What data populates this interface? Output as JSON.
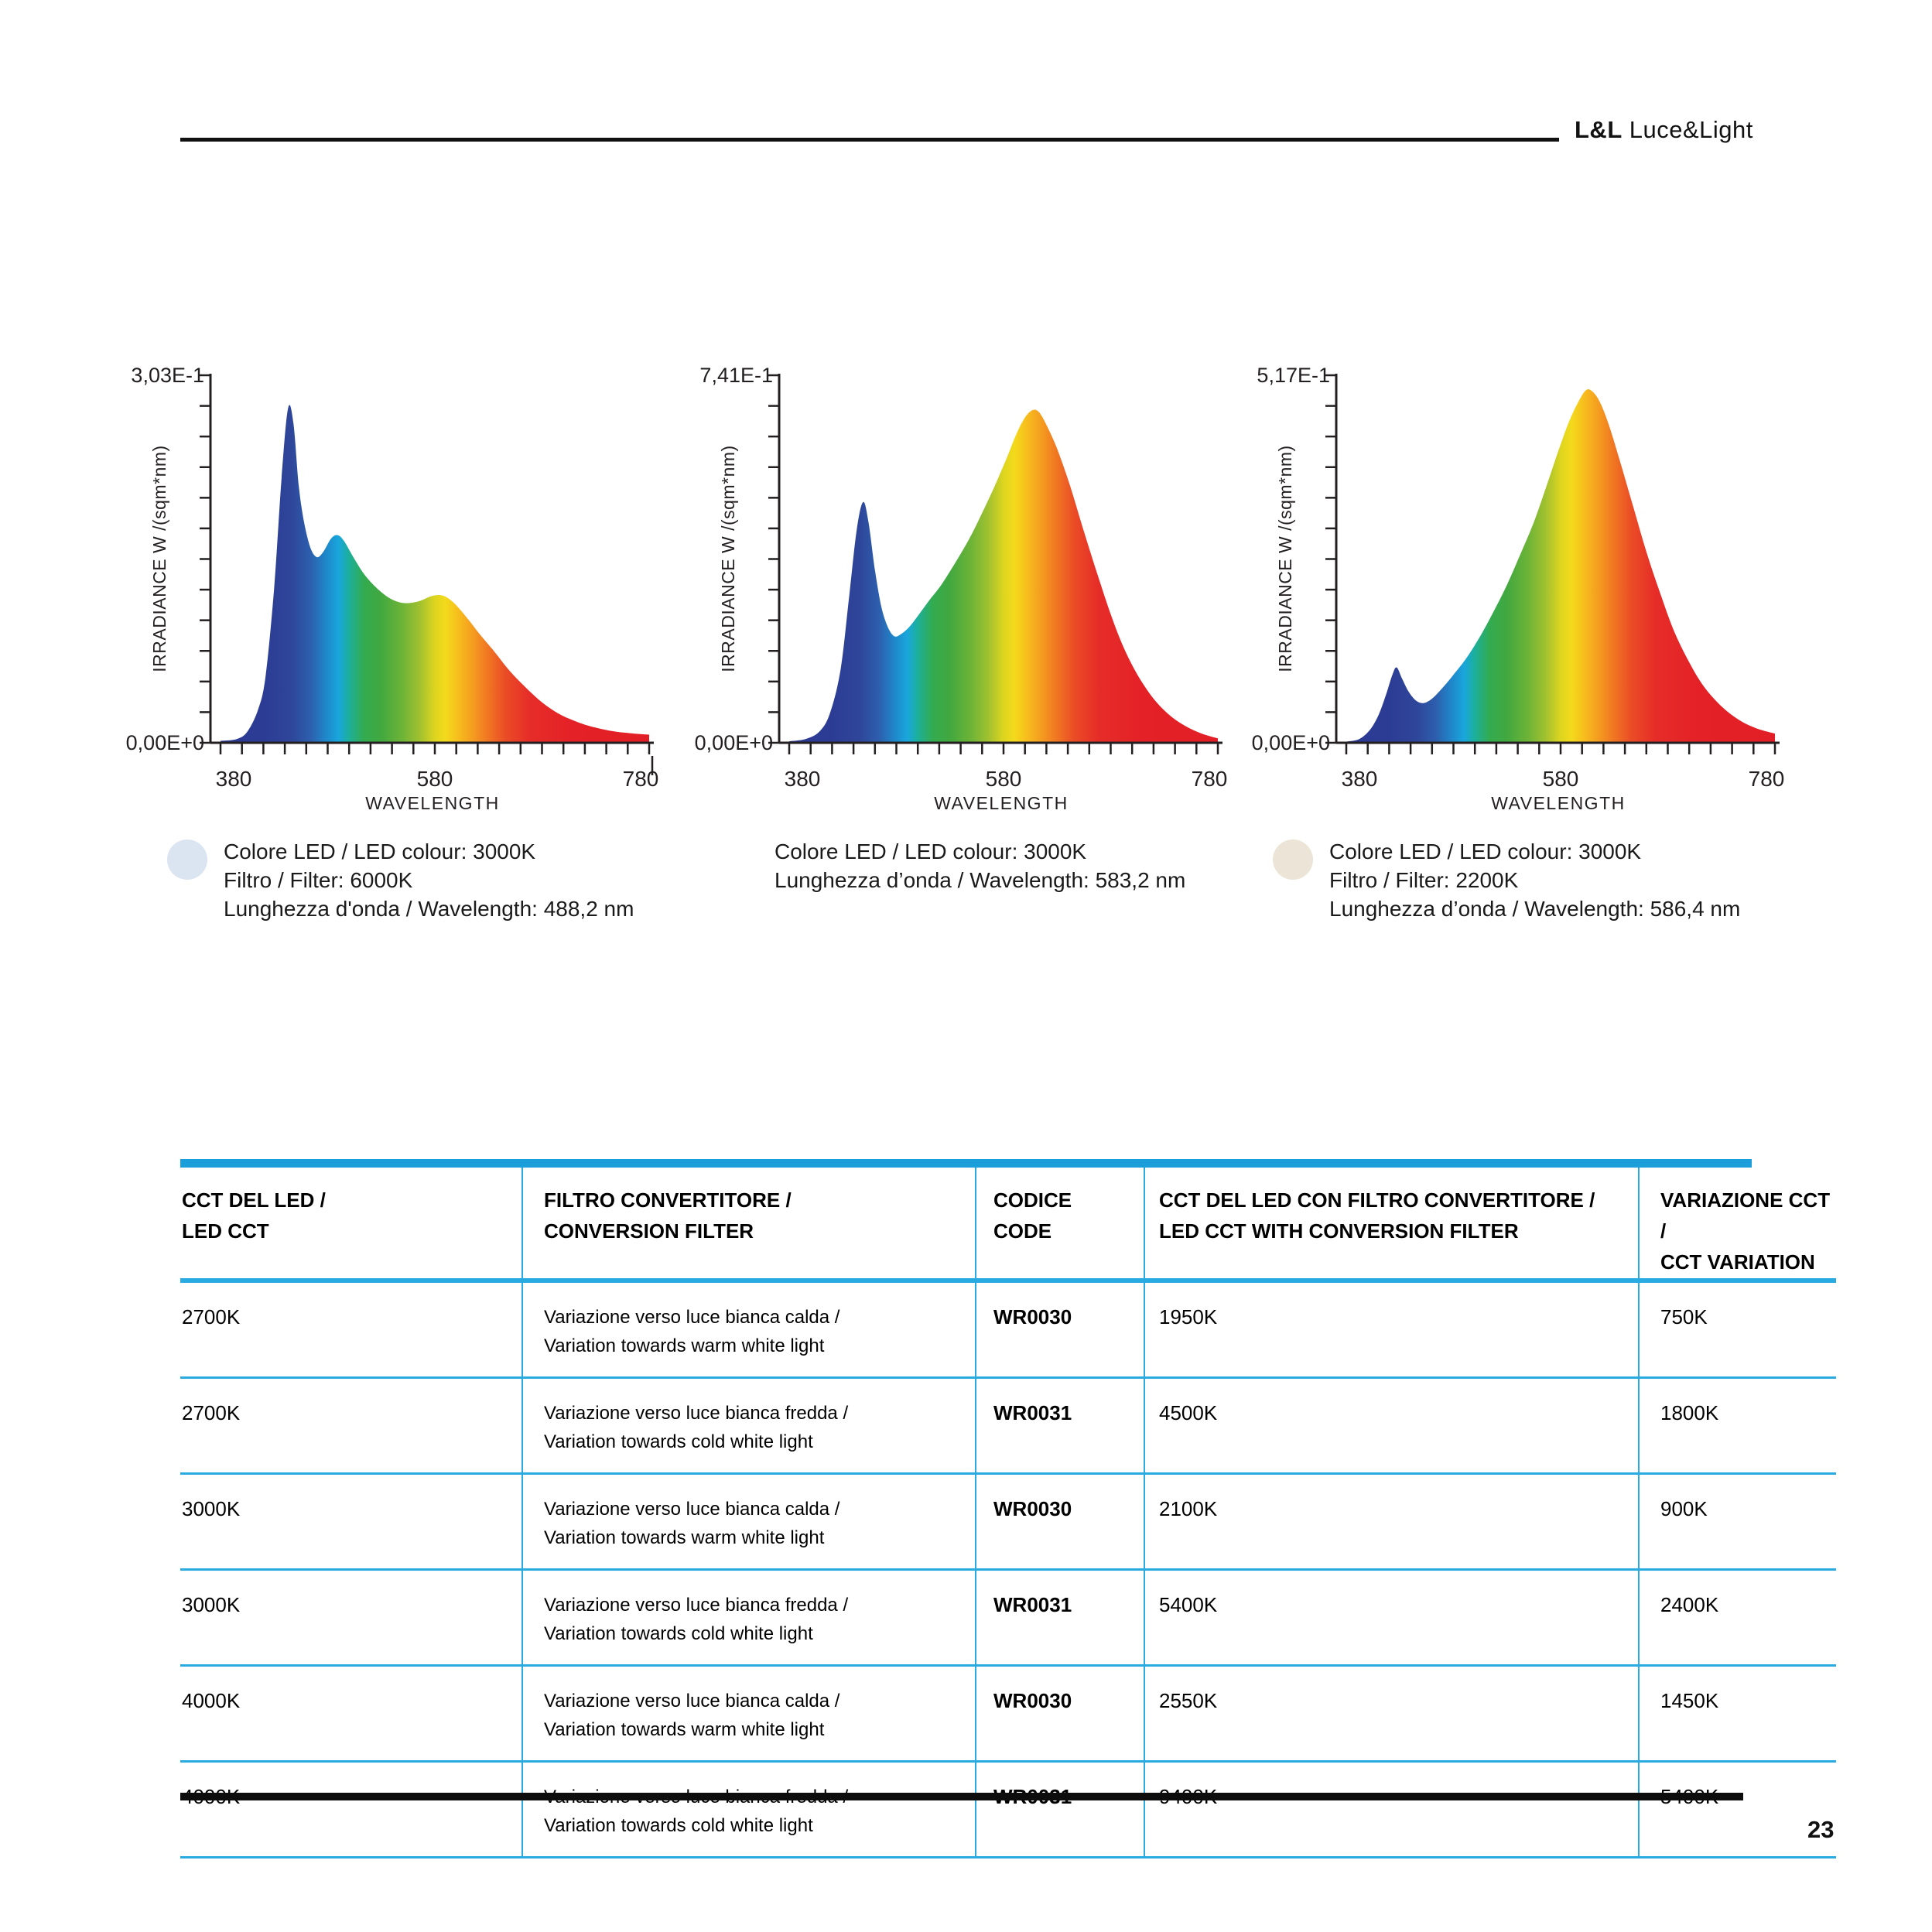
{
  "page": {
    "page_number": "23"
  },
  "header": {
    "brand_bold": "L&L",
    "brand_rest": "Luce&Light"
  },
  "chart_data": [
    {
      "type": "area",
      "y_max_label": "3,03E-1",
      "y_min_label": "0,00E+0",
      "y_axis_label": "IRRADIANCE W /(sqm*nm)",
      "x_axis_label": "WAVELENGTH",
      "x_tick_labels": [
        "380",
        "580",
        "780"
      ],
      "x_range_nm": [
        380,
        780
      ],
      "stray_tick_after_780": true,
      "caption_swatch": "#dbe5f1",
      "caption_lines": [
        "Colore LED / LED colour: 3000K",
        "Filtro / Filter: 6000K",
        "Lunghezza d'onda / Wavelength: 488,2 nm"
      ],
      "points": [
        [
          380,
          0.005
        ],
        [
          395,
          0.01
        ],
        [
          405,
          0.03
        ],
        [
          415,
          0.09
        ],
        [
          422,
          0.18
        ],
        [
          430,
          0.42
        ],
        [
          437,
          0.72
        ],
        [
          443,
          0.91
        ],
        [
          448,
          0.87
        ],
        [
          453,
          0.7
        ],
        [
          458,
          0.6
        ],
        [
          464,
          0.53
        ],
        [
          470,
          0.505
        ],
        [
          476,
          0.52
        ],
        [
          483,
          0.555
        ],
        [
          489,
          0.565
        ],
        [
          495,
          0.55
        ],
        [
          505,
          0.5
        ],
        [
          515,
          0.455
        ],
        [
          528,
          0.415
        ],
        [
          540,
          0.39
        ],
        [
          552,
          0.38
        ],
        [
          565,
          0.385
        ],
        [
          578,
          0.4
        ],
        [
          588,
          0.4
        ],
        [
          598,
          0.38
        ],
        [
          610,
          0.34
        ],
        [
          622,
          0.295
        ],
        [
          635,
          0.25
        ],
        [
          650,
          0.195
        ],
        [
          665,
          0.15
        ],
        [
          680,
          0.11
        ],
        [
          695,
          0.08
        ],
        [
          710,
          0.06
        ],
        [
          725,
          0.045
        ],
        [
          745,
          0.032
        ],
        [
          762,
          0.026
        ],
        [
          780,
          0.022
        ]
      ]
    },
    {
      "type": "area",
      "y_max_label": "7,41E-1",
      "y_min_label": "0,00E+0",
      "y_axis_label": "IRRADIANCE W /(sqm*nm)",
      "x_axis_label": "WAVELENGTH",
      "x_tick_labels": [
        "380",
        "580",
        "780"
      ],
      "x_range_nm": [
        380,
        780
      ],
      "stray_tick_after_780": false,
      "caption_swatch": null,
      "caption_lines": [
        "Colore LED / LED colour: 3000K",
        "Lunghezza d’onda / Wavelength: 583,2 nm"
      ],
      "points": [
        [
          380,
          0.004
        ],
        [
          395,
          0.01
        ],
        [
          408,
          0.03
        ],
        [
          418,
          0.08
        ],
        [
          428,
          0.2
        ],
        [
          436,
          0.4
        ],
        [
          443,
          0.58
        ],
        [
          449,
          0.655
        ],
        [
          454,
          0.6
        ],
        [
          460,
          0.47
        ],
        [
          466,
          0.37
        ],
        [
          472,
          0.315
        ],
        [
          478,
          0.29
        ],
        [
          484,
          0.295
        ],
        [
          492,
          0.315
        ],
        [
          500,
          0.345
        ],
        [
          510,
          0.385
        ],
        [
          522,
          0.43
        ],
        [
          535,
          0.49
        ],
        [
          548,
          0.555
        ],
        [
          560,
          0.625
        ],
        [
          572,
          0.7
        ],
        [
          583,
          0.775
        ],
        [
          592,
          0.84
        ],
        [
          600,
          0.885
        ],
        [
          607,
          0.905
        ],
        [
          613,
          0.9
        ],
        [
          620,
          0.865
        ],
        [
          630,
          0.8
        ],
        [
          642,
          0.7
        ],
        [
          655,
          0.575
        ],
        [
          668,
          0.455
        ],
        [
          680,
          0.35
        ],
        [
          692,
          0.26
        ],
        [
          705,
          0.185
        ],
        [
          720,
          0.12
        ],
        [
          735,
          0.075
        ],
        [
          750,
          0.045
        ],
        [
          765,
          0.025
        ],
        [
          780,
          0.012
        ]
      ]
    },
    {
      "type": "area",
      "y_max_label": "5,17E-1",
      "y_min_label": "0,00E+0",
      "y_axis_label": "IRRADIANCE W /(sqm*nm)",
      "x_axis_label": "WAVELENGTH",
      "x_tick_labels": [
        "380",
        "580",
        "780"
      ],
      "x_range_nm": [
        380,
        780
      ],
      "stray_tick_after_780": false,
      "caption_swatch": "#ece4d6",
      "caption_lines": [
        "Colore LED / LED colour: 3000K",
        "Filtro / Filter: 2200K",
        "Lunghezza d’onda / Wavelength: 586,4 nm"
      ],
      "points": [
        [
          380,
          0.003
        ],
        [
          392,
          0.01
        ],
        [
          402,
          0.035
        ],
        [
          410,
          0.075
        ],
        [
          417,
          0.13
        ],
        [
          423,
          0.185
        ],
        [
          427,
          0.205
        ],
        [
          432,
          0.175
        ],
        [
          438,
          0.14
        ],
        [
          445,
          0.115
        ],
        [
          452,
          0.108
        ],
        [
          460,
          0.12
        ],
        [
          470,
          0.15
        ],
        [
          480,
          0.185
        ],
        [
          492,
          0.23
        ],
        [
          505,
          0.29
        ],
        [
          518,
          0.36
        ],
        [
          530,
          0.43
        ],
        [
          542,
          0.51
        ],
        [
          555,
          0.6
        ],
        [
          567,
          0.7
        ],
        [
          578,
          0.795
        ],
        [
          588,
          0.875
        ],
        [
          597,
          0.93
        ],
        [
          604,
          0.96
        ],
        [
          610,
          0.955
        ],
        [
          617,
          0.925
        ],
        [
          625,
          0.865
        ],
        [
          635,
          0.77
        ],
        [
          647,
          0.65
        ],
        [
          660,
          0.52
        ],
        [
          672,
          0.415
        ],
        [
          685,
          0.31
        ],
        [
          698,
          0.23
        ],
        [
          712,
          0.16
        ],
        [
          728,
          0.105
        ],
        [
          745,
          0.065
        ],
        [
          762,
          0.04
        ],
        [
          780,
          0.025
        ]
      ]
    }
  ],
  "table": {
    "headers": [
      [
        "CCT DEL LED /",
        "LED CCT"
      ],
      [
        "FILTRO CONVERTITORE /",
        "CONVERSION FILTER"
      ],
      [
        "CODICE",
        "CODE"
      ],
      [
        "CCT DEL LED CON FILTRO CONVERTITORE /",
        "LED CCT WITH CONVERSION FILTER"
      ],
      [
        "VARIAZIONE CCT /",
        "CCT VARIATION"
      ]
    ],
    "rows": [
      {
        "led_cct": "2700K",
        "filter": [
          "Variazione verso luce bianca calda /",
          "Variation towards warm white light"
        ],
        "code": "WR0030",
        "result_cct": "1950K",
        "variation": "750K"
      },
      {
        "led_cct": "2700K",
        "filter": [
          "Variazione verso luce bianca fredda /",
          "Variation towards cold white light"
        ],
        "code": "WR0031",
        "result_cct": "4500K",
        "variation": "1800K"
      },
      {
        "led_cct": "3000K",
        "filter": [
          "Variazione verso luce bianca calda /",
          "Variation towards warm white light"
        ],
        "code": "WR0030",
        "result_cct": "2100K",
        "variation": "900K"
      },
      {
        "led_cct": "3000K",
        "filter": [
          "Variazione verso luce bianca fredda /",
          "Variation towards cold white light"
        ],
        "code": "WR0031",
        "result_cct": "5400K",
        "variation": "2400K"
      },
      {
        "led_cct": "4000K",
        "filter": [
          "Variazione verso luce bianca calda /",
          "Variation towards warm white light"
        ],
        "code": "WR0030",
        "result_cct": "2550K",
        "variation": "1450K"
      },
      {
        "led_cct": "4000K",
        "filter": [
          "Variazione verso luce bianca fredda /",
          "Variation towards cold white light"
        ],
        "code": "WR0031",
        "result_cct": "9400K",
        "variation": "5400K"
      }
    ]
  },
  "colors": {
    "accent_blue": "#29abe2",
    "bar_blue": "#1b9fdb",
    "axis": "#231f20",
    "spectrum_gradient": [
      [
        0,
        "#2b3991"
      ],
      [
        0.1,
        "#2c3c95"
      ],
      [
        0.165,
        "#2e4699"
      ],
      [
        0.21,
        "#2d5fae"
      ],
      [
        0.245,
        "#1f86c9"
      ],
      [
        0.275,
        "#19a6dd"
      ],
      [
        0.3,
        "#1caf9a"
      ],
      [
        0.335,
        "#33ab4f"
      ],
      [
        0.375,
        "#42a83f"
      ],
      [
        0.425,
        "#6eb437"
      ],
      [
        0.465,
        "#a1c12f"
      ],
      [
        0.5,
        "#ddd51f"
      ],
      [
        0.525,
        "#f3da1c"
      ],
      [
        0.555,
        "#f7bd1d"
      ],
      [
        0.59,
        "#f49b20"
      ],
      [
        0.625,
        "#f07522"
      ],
      [
        0.665,
        "#ea4c26"
      ],
      [
        0.72,
        "#e62d28"
      ],
      [
        0.82,
        "#e42127"
      ],
      [
        1,
        "#e21f26"
      ]
    ]
  }
}
